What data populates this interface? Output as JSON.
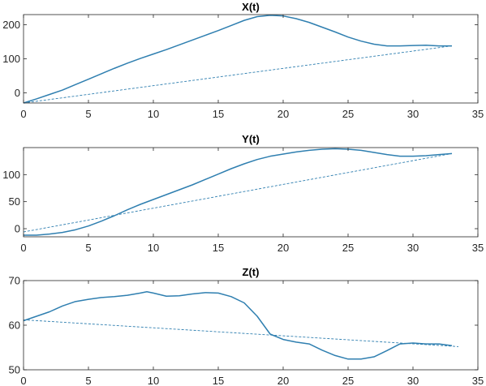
{
  "chart_data": [
    {
      "type": "line",
      "title": "X(t)",
      "xlim": [
        0,
        35
      ],
      "ylim": [
        -30,
        230
      ],
      "xticks": [
        0,
        5,
        10,
        15,
        20,
        25,
        30,
        35
      ],
      "yticks": [
        0,
        100,
        200
      ],
      "grid": false,
      "series": [
        {
          "style": "solid",
          "color": "#2F7FB0",
          "x": [
            0,
            1,
            2,
            3,
            4,
            5,
            6,
            7,
            8,
            9,
            10,
            11,
            12,
            13,
            14,
            15,
            16,
            17,
            18,
            19,
            20,
            21,
            22,
            23,
            24,
            25,
            26,
            27,
            28,
            29,
            30,
            31,
            32,
            33
          ],
          "y": [
            -30,
            -18,
            -5,
            8,
            24,
            40,
            56,
            72,
            87,
            101,
            114,
            127,
            141,
            155,
            169,
            183,
            198,
            213,
            224,
            228,
            226,
            218,
            207,
            193,
            179,
            164,
            152,
            143,
            138,
            138,
            139,
            140,
            138,
            138
          ]
        },
        {
          "style": "dashed",
          "color": "#2F7FB0",
          "x": [
            0,
            33
          ],
          "y": [
            -30,
            138
          ]
        }
      ]
    },
    {
      "type": "line",
      "title": "Y(t)",
      "xlim": [
        0,
        35
      ],
      "ylim": [
        -15,
        150
      ],
      "xticks": [
        0,
        5,
        10,
        15,
        20,
        25,
        30,
        35
      ],
      "yticks": [
        0,
        50,
        100
      ],
      "grid": false,
      "series": [
        {
          "style": "solid",
          "color": "#2F7FB0",
          "x": [
            0,
            1,
            2,
            3,
            4,
            5,
            6,
            7,
            8,
            9,
            10,
            11,
            12,
            13,
            14,
            15,
            16,
            17,
            18,
            19,
            20,
            21,
            22,
            23,
            24,
            25,
            26,
            27,
            28,
            29,
            30,
            31,
            32,
            33
          ],
          "y": [
            -12,
            -12,
            -10,
            -7,
            -2,
            5,
            14,
            24,
            35,
            45,
            54,
            63,
            72,
            81,
            91,
            101,
            111,
            120,
            128,
            134,
            138,
            142,
            145,
            147,
            148,
            147,
            145,
            141,
            137,
            134,
            134,
            135,
            137,
            139
          ]
        },
        {
          "style": "dashed",
          "color": "#2F7FB0",
          "x": [
            0,
            33
          ],
          "y": [
            -6,
            139
          ]
        }
      ]
    },
    {
      "type": "line",
      "title": "Z(t)",
      "xlim": [
        0,
        35
      ],
      "ylim": [
        50,
        70
      ],
      "xticks": [
        0,
        5,
        10,
        15,
        20,
        25,
        30,
        35
      ],
      "yticks": [
        50,
        60,
        70
      ],
      "grid": false,
      "series": [
        {
          "style": "solid",
          "color": "#2F7FB0",
          "x": [
            0,
            1,
            2,
            3,
            4,
            5,
            6,
            7,
            8,
            9,
            9.5,
            10,
            11,
            12,
            13,
            14,
            15,
            16,
            17,
            18,
            19,
            20,
            21,
            22,
            23,
            24,
            25,
            26,
            27,
            28,
            29,
            30,
            31,
            32,
            33
          ],
          "y": [
            61,
            62,
            63,
            64.3,
            65.3,
            65.8,
            66.2,
            66.4,
            66.7,
            67.2,
            67.5,
            67.2,
            66.5,
            66.6,
            67.0,
            67.3,
            67.2,
            66.4,
            65.0,
            62.0,
            58.0,
            56.8,
            56.2,
            55.8,
            54.4,
            53.2,
            52.4,
            52.4,
            52.9,
            54.3,
            55.8,
            56.0,
            55.8,
            55.8,
            55.4
          ]
        },
        {
          "style": "dashed",
          "color": "#2F7FB0",
          "x": [
            0,
            33.5
          ],
          "y": [
            61.2,
            55.2
          ]
        }
      ]
    }
  ]
}
